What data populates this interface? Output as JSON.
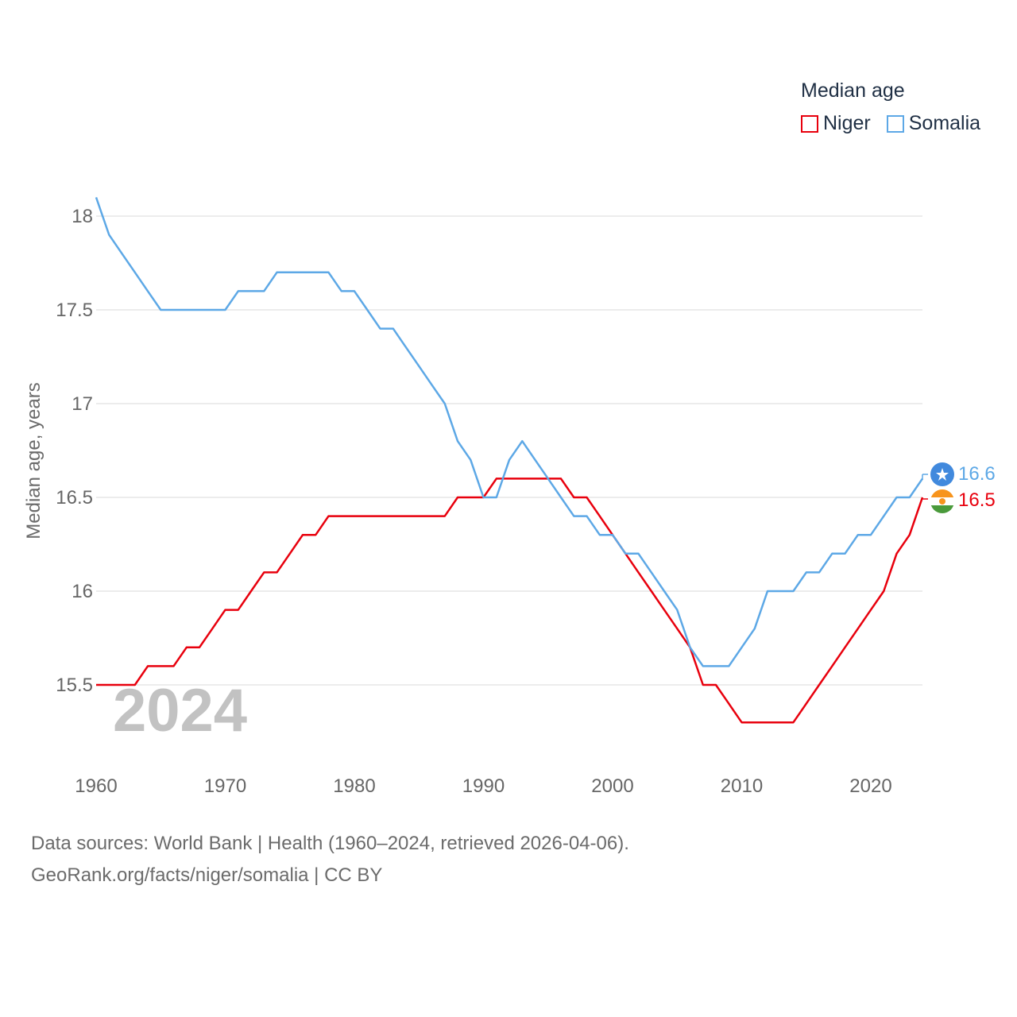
{
  "legend": {
    "title": "Median age",
    "items": [
      {
        "name": "Niger",
        "color": "#e8000d"
      },
      {
        "name": "Somalia",
        "color": "#5da8e6"
      }
    ]
  },
  "year_watermark": "2024",
  "sources": {
    "line1": "Data sources: World Bank | Health (1960–2024, retrieved 2026-04-06).",
    "line2": "GeoRank.org/facts/niger/somalia | CC BY"
  },
  "end_labels": {
    "somalia": "16.6",
    "niger": "16.5"
  },
  "chart_data": {
    "type": "line",
    "title": "Median age",
    "xlabel": "",
    "ylabel": "Median age, years",
    "xlim": [
      1960,
      2024
    ],
    "ylim": [
      15.1,
      18.2
    ],
    "x_ticks": [
      "1960",
      "1970",
      "1980",
      "1990",
      "2000",
      "2010",
      "2020"
    ],
    "y_ticks": [
      "15.5",
      "16",
      "16.5",
      "17",
      "17.5",
      "18"
    ],
    "grid": true,
    "x": [
      1960,
      1961,
      1962,
      1963,
      1964,
      1965,
      1966,
      1967,
      1968,
      1969,
      1970,
      1971,
      1972,
      1973,
      1974,
      1975,
      1976,
      1977,
      1978,
      1979,
      1980,
      1981,
      1982,
      1983,
      1984,
      1985,
      1986,
      1987,
      1988,
      1989,
      1990,
      1991,
      1992,
      1993,
      1994,
      1995,
      1996,
      1997,
      1998,
      1999,
      2000,
      2001,
      2002,
      2003,
      2004,
      2005,
      2006,
      2007,
      2008,
      2009,
      2010,
      2011,
      2012,
      2013,
      2014,
      2015,
      2016,
      2017,
      2018,
      2019,
      2020,
      2021,
      2022,
      2023,
      2024
    ],
    "series": [
      {
        "name": "Niger",
        "color": "#e8000d",
        "values": [
          15.5,
          15.5,
          15.5,
          15.5,
          15.6,
          15.6,
          15.6,
          15.7,
          15.7,
          15.8,
          15.9,
          15.9,
          16.0,
          16.1,
          16.1,
          16.2,
          16.3,
          16.3,
          16.4,
          16.4,
          16.4,
          16.4,
          16.4,
          16.4,
          16.4,
          16.4,
          16.4,
          16.4,
          16.5,
          16.5,
          16.5,
          16.6,
          16.6,
          16.6,
          16.6,
          16.6,
          16.6,
          16.5,
          16.5,
          16.4,
          16.3,
          16.2,
          16.1,
          16.0,
          15.9,
          15.8,
          15.7,
          15.5,
          15.5,
          15.4,
          15.3,
          15.3,
          15.3,
          15.3,
          15.3,
          15.4,
          15.5,
          15.6,
          15.7,
          15.8,
          15.9,
          16.0,
          16.2,
          16.3,
          16.5
        ]
      },
      {
        "name": "Somalia",
        "color": "#5da8e6",
        "values": [
          18.1,
          17.9,
          17.8,
          17.7,
          17.6,
          17.5,
          17.5,
          17.5,
          17.5,
          17.5,
          17.5,
          17.6,
          17.6,
          17.6,
          17.7,
          17.7,
          17.7,
          17.7,
          17.7,
          17.6,
          17.6,
          17.5,
          17.4,
          17.4,
          17.3,
          17.2,
          17.1,
          17.0,
          16.8,
          16.7,
          16.5,
          16.5,
          16.7,
          16.8,
          16.7,
          16.6,
          16.5,
          16.4,
          16.4,
          16.3,
          16.3,
          16.2,
          16.2,
          16.1,
          16.0,
          15.9,
          15.7,
          15.6,
          15.6,
          15.6,
          15.7,
          15.8,
          16.0,
          16.0,
          16.0,
          16.1,
          16.1,
          16.2,
          16.2,
          16.3,
          16.3,
          16.4,
          16.5,
          16.5,
          16.6
        ]
      }
    ]
  }
}
